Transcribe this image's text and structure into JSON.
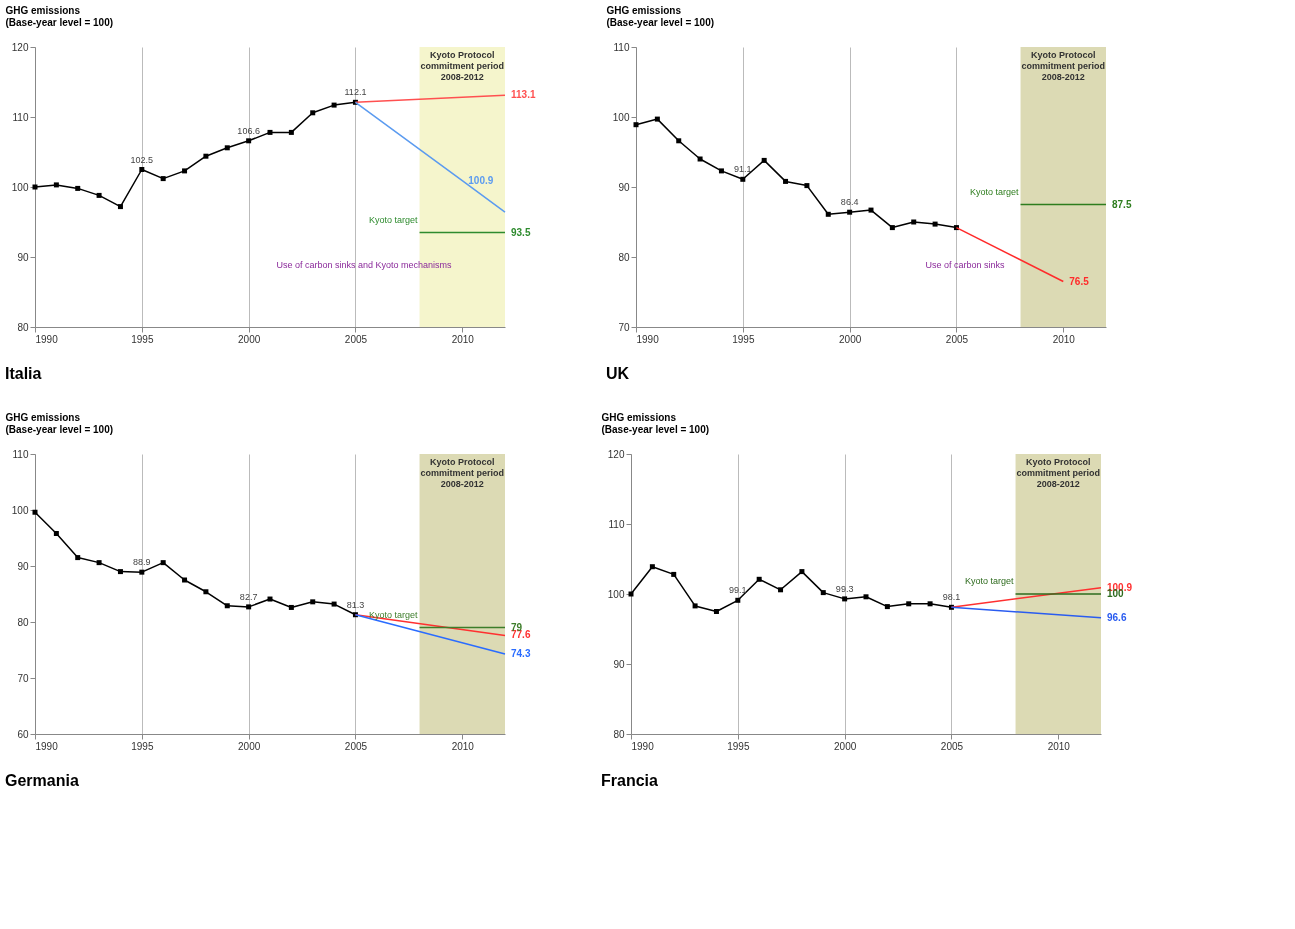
{
  "chart_data": [
    {
      "type": "line",
      "title": "Italia",
      "ylabel": "GHG emissions\n(Base-year level = 100)",
      "xlim": [
        1990,
        2012
      ],
      "xticks": [
        1990,
        1995,
        2000,
        2005,
        2010
      ],
      "ylim": [
        80,
        120
      ],
      "yticks": [
        80,
        90,
        100,
        110,
        120
      ],
      "grid": "x",
      "series": [
        {
          "color": "#000000",
          "marker": "square",
          "x": [
            1990,
            1991,
            1992,
            1993,
            1994,
            1995,
            1996,
            1997,
            1998,
            1999,
            2000,
            2001,
            2002,
            2003,
            2004,
            2005
          ],
          "values": [
            100,
            100.3,
            99.8,
            98.8,
            97.2,
            102.5,
            101.2,
            102.3,
            104.4,
            105.6,
            106.6,
            107.8,
            107.8,
            110.6,
            111.7,
            112.1
          ],
          "value_labels": [
            null,
            null,
            null,
            null,
            null,
            "102.5",
            null,
            null,
            null,
            null,
            "106.6",
            null,
            null,
            null,
            null,
            "112.1"
          ]
        },
        {
          "color": "#ff5050",
          "marker": "none",
          "x": [
            2005,
            2012
          ],
          "values": [
            112.1,
            113.1
          ],
          "value_labels": [
            null,
            "113.1"
          ]
        },
        {
          "color": "#5b9bf0",
          "marker": "none",
          "x": [
            2005,
            2010,
            2012
          ],
          "values": [
            112.1,
            100.9,
            96.4
          ],
          "value_labels": [
            null,
            "100.9",
            null
          ]
        },
        {
          "name": "Kyoto target",
          "color": "#2e8b2e",
          "marker": "none",
          "x": [
            2008,
            2012
          ],
          "values": [
            93.5,
            93.5
          ],
          "value_labels": [
            null,
            "93.5"
          ]
        }
      ],
      "bands": [
        {
          "axis": "x",
          "from": 2008,
          "to": 2012,
          "label": "Kyoto Protocol\ncommitment period\n2008-2012",
          "color": "#f5f5cc"
        }
      ],
      "annotations": [
        "Use of carbon sinks and Kyoto mechanisms"
      ]
    },
    {
      "type": "line",
      "title": "UK",
      "ylabel": "GHG emissions\n(Base-year level = 100)",
      "xlim": [
        1990,
        2012
      ],
      "xticks": [
        1990,
        1995,
        2000,
        2005,
        2010
      ],
      "ylim": [
        70,
        110
      ],
      "yticks": [
        70,
        80,
        90,
        100,
        110
      ],
      "grid": "x",
      "series": [
        {
          "color": "#000000",
          "marker": "square",
          "x": [
            1990,
            1991,
            1992,
            1993,
            1994,
            1995,
            1996,
            1997,
            1998,
            1999,
            2000,
            2001,
            2002,
            2003,
            2004,
            2005
          ],
          "values": [
            98.9,
            99.7,
            96.6,
            94.0,
            92.3,
            91.1,
            93.8,
            90.8,
            90.2,
            86.1,
            86.4,
            86.7,
            84.2,
            85.0,
            84.7,
            84.2
          ],
          "value_labels": [
            null,
            null,
            null,
            null,
            null,
            "91.1",
            null,
            null,
            null,
            null,
            "86.4",
            null,
            null,
            null,
            null,
            null
          ]
        },
        {
          "color": "#ff2a2a",
          "marker": "none",
          "x": [
            2005,
            2010
          ],
          "values": [
            84.2,
            76.5
          ],
          "value_labels": [
            null,
            "76.5"
          ]
        },
        {
          "name": "Kyoto target",
          "color": "#2e7d1e",
          "marker": "none",
          "x": [
            2008,
            2012
          ],
          "values": [
            87.5,
            87.5
          ],
          "value_labels": [
            null,
            "87.5"
          ]
        }
      ],
      "bands": [
        {
          "axis": "x",
          "from": 2008,
          "to": 2012,
          "label": "Kyoto Protocol\ncommitment period\n2008-2012",
          "color": "#dcdab4"
        }
      ],
      "annotations": [
        "Use of carbon sinks"
      ]
    },
    {
      "type": "line",
      "title": "Germania",
      "ylabel": "GHG emissions\n(Base-year level = 100)",
      "xlim": [
        1990,
        2012
      ],
      "xticks": [
        1990,
        1995,
        2000,
        2005,
        2010
      ],
      "ylim": [
        60,
        110
      ],
      "yticks": [
        60,
        70,
        80,
        90,
        100,
        110
      ],
      "grid": "x",
      "series": [
        {
          "color": "#000000",
          "marker": "square",
          "x": [
            1990,
            1991,
            1992,
            1993,
            1994,
            1995,
            1996,
            1997,
            1998,
            1999,
            2000,
            2001,
            2002,
            2003,
            2004,
            2005
          ],
          "values": [
            99.6,
            95.8,
            91.5,
            90.6,
            89.0,
            88.9,
            90.6,
            87.5,
            85.4,
            82.9,
            82.7,
            84.1,
            82.6,
            83.6,
            83.2,
            81.3
          ],
          "value_labels": [
            null,
            null,
            null,
            null,
            null,
            "88.9",
            null,
            null,
            null,
            null,
            "82.7",
            null,
            null,
            null,
            null,
            "81.3"
          ]
        },
        {
          "color": "#ff3030",
          "marker": "none",
          "x": [
            2005,
            2012
          ],
          "values": [
            81.3,
            77.6
          ],
          "value_labels": [
            null,
            "77.6"
          ]
        },
        {
          "color": "#2a6cff",
          "marker": "none",
          "x": [
            2005,
            2012
          ],
          "values": [
            81.3,
            74.3
          ],
          "value_labels": [
            null,
            "74.3"
          ]
        },
        {
          "name": "Kyoto target",
          "color": "#3d7d2a",
          "marker": "none",
          "x": [
            2008,
            2012
          ],
          "values": [
            79,
            79
          ],
          "value_labels": [
            null,
            "79"
          ]
        }
      ],
      "bands": [
        {
          "axis": "x",
          "from": 2008,
          "to": 2012,
          "label": "Kyoto Protocol\ncommitment period\n2008-2012",
          "color": "#dcdab4"
        }
      ]
    },
    {
      "type": "line",
      "title": "Francia",
      "ylabel": "GHG emissions\n(Base-year level = 100)",
      "xlim": [
        1990,
        2012
      ],
      "xticks": [
        1990,
        1995,
        2000,
        2005,
        2010
      ],
      "ylim": [
        80,
        120
      ],
      "yticks": [
        80,
        90,
        100,
        110,
        120
      ],
      "grid": "x",
      "series": [
        {
          "color": "#000000",
          "marker": "square",
          "x": [
            1990,
            1991,
            1992,
            1993,
            1994,
            1995,
            1996,
            1997,
            1998,
            1999,
            2000,
            2001,
            2002,
            2003,
            2004,
            2005
          ],
          "values": [
            100.0,
            103.9,
            102.8,
            98.3,
            97.5,
            99.1,
            102.1,
            100.6,
            103.2,
            100.2,
            99.3,
            99.6,
            98.2,
            98.6,
            98.6,
            98.1
          ],
          "value_labels": [
            null,
            null,
            null,
            null,
            null,
            "99.1",
            null,
            null,
            null,
            null,
            "99.3",
            null,
            null,
            null,
            null,
            "98.1"
          ]
        },
        {
          "color": "#ff3030",
          "marker": "none",
          "x": [
            2005,
            2012
          ],
          "values": [
            98.1,
            100.9
          ],
          "value_labels": [
            null,
            "100.9"
          ]
        },
        {
          "color": "#2a5cf0",
          "marker": "none",
          "x": [
            2005,
            2012
          ],
          "values": [
            98.1,
            96.6
          ],
          "value_labels": [
            null,
            "96.6"
          ]
        },
        {
          "name": "Kyoto target",
          "color": "#2e6b1e",
          "marker": "none",
          "x": [
            2008,
            2012
          ],
          "values": [
            100,
            100
          ],
          "value_labels": [
            null,
            "100"
          ]
        }
      ],
      "bands": [
        {
          "axis": "x",
          "from": 2008,
          "to": 2012,
          "label": "Kyoto Protocol\ncommitment period\n2008-2012",
          "color": "#dcdab4"
        }
      ]
    }
  ]
}
